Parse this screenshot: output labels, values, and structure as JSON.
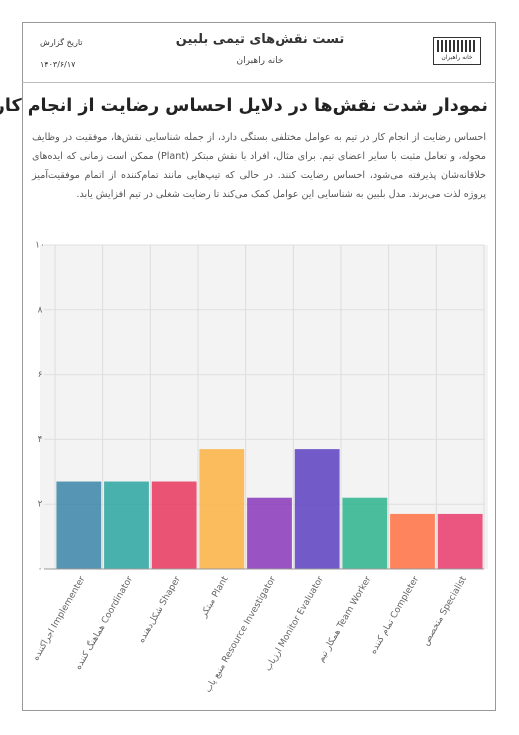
{
  "header": {
    "date_label": "تاریخ گزارش",
    "date": "۱۴۰۳/۶/۱۷",
    "title": "تست نقش‌های تیمی بلبین",
    "subtitle": "خانه راهبران",
    "logo_text": "خانه راهبران"
  },
  "section": {
    "title": "نمودار شدت نقش‌ها در دلایل احساس رضایت از انجام کار",
    "paragraph": "احساس رضایت از انجام کار در تیم به عوامل مختلفی بستگی دارد، از جمله شناسایی نقش‌ها، موفقیت در وظایف محوله، و تعامل مثبت با سایر اعضای تیم. برای مثال، افراد با نقش مبتکر (Plant) ممکن است زمانی که ایده‌های خلاقانه‌شان پذیرفته می‌شود، احساس رضایت کنند. در حالی که تیپ‌هایی مانند تمام‌کننده از اتمام موفقیت‌آمیز پروژه لذت می‌برند. مدل بلبین به شناسایی این عوامل کمک می‌کند تا رضایت شغلی در تیم افزایش یابد."
  },
  "chart_data": {
    "type": "bar",
    "categories": [
      "اجراکننده Implementer",
      "هماهنگ کننده Coordinator",
      "شکل‌دهنده Shaper",
      "مبتکر Plant",
      "منبع یاب Resource Investigator",
      "ارزیاب Monitor Evaluator",
      "همکار تیم Team Worker",
      "تمام کننده Completer",
      "متخصص Specialist"
    ],
    "values": [
      2.7,
      2.7,
      2.7,
      3.7,
      2.2,
      3.7,
      2.2,
      1.7,
      1.7
    ],
    "colors": [
      "#3b84a8",
      "#2aa5a0",
      "#e8365d",
      "#fbb143",
      "#8a36b8",
      "#5a3fc0",
      "#2bb38c",
      "#ff7043",
      "#e83a6a"
    ],
    "ylim": [
      0,
      10
    ],
    "yticks": [
      {
        "value": 0,
        "label": "۰"
      },
      {
        "value": 2,
        "label": "۲"
      },
      {
        "value": 4,
        "label": "۴"
      },
      {
        "value": 6,
        "label": "۶"
      },
      {
        "value": 8,
        "label": "۸"
      },
      {
        "value": 10,
        "label": "۱۰"
      }
    ],
    "grid": true
  }
}
